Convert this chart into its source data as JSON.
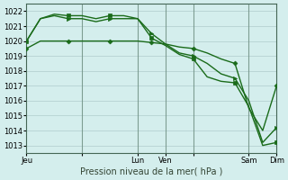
{
  "xlabel": "Pression niveau de la mer( hPa )",
  "bg_color": "#d4eeed",
  "grid_color": "#b0cccc",
  "line_color": "#1a6b1a",
  "marker_color": "#1a6b1a",
  "ylim": [
    1012.5,
    1022.5
  ],
  "yticks": [
    1013,
    1014,
    1015,
    1016,
    1017,
    1018,
    1019,
    1020,
    1021,
    1022
  ],
  "xlim": [
    0,
    108
  ],
  "day_tick_positions": [
    0,
    24,
    48,
    60,
    72,
    96,
    108
  ],
  "day_labels": [
    "Jeu",
    "",
    "Lun",
    "Ven",
    "",
    "Sam",
    "Dim"
  ],
  "series": [
    {
      "x": [
        0,
        6,
        12,
        18,
        24,
        30,
        36,
        42,
        48,
        54,
        60,
        66,
        72,
        78,
        84,
        90,
        96,
        102,
        108
      ],
      "y": [
        1019.5,
        1020.0,
        1020.0,
        1020.0,
        1020.0,
        1020.0,
        1020.0,
        1020.0,
        1020.0,
        1019.9,
        1019.8,
        1019.6,
        1019.5,
        1019.2,
        1018.8,
        1018.5,
        1015.5,
        1014.0,
        1017.0
      ],
      "marker": "D",
      "linewidth": 1.0,
      "markersize": 2.5,
      "markevery": 3
    },
    {
      "x": [
        0,
        6,
        12,
        18,
        24,
        30,
        36,
        42,
        48,
        54,
        60,
        66,
        72,
        78,
        84,
        90,
        96,
        102,
        108
      ],
      "y": [
        1020.0,
        1021.5,
        1021.7,
        1021.5,
        1021.5,
        1021.3,
        1021.5,
        1021.5,
        1021.5,
        1020.5,
        1019.8,
        1019.2,
        1019.0,
        1018.5,
        1017.8,
        1017.5,
        1016.0,
        1013.2,
        1014.2
      ],
      "marker": ">",
      "linewidth": 1.0,
      "markersize": 3.0,
      "markevery": 3
    },
    {
      "x": [
        0,
        6,
        12,
        18,
        24,
        30,
        36,
        42,
        48,
        54,
        60,
        66,
        72,
        78,
        84,
        90,
        96,
        102,
        108
      ],
      "y": [
        1020.0,
        1021.5,
        1021.8,
        1021.7,
        1021.7,
        1021.5,
        1021.7,
        1021.7,
        1021.5,
        1020.2,
        1019.7,
        1019.1,
        1018.8,
        1017.6,
        1017.3,
        1017.2,
        1015.6,
        1013.0,
        1013.2
      ],
      "marker": "s",
      "linewidth": 1.0,
      "markersize": 2.5,
      "markevery": 3
    }
  ],
  "vline_positions": [
    24,
    48,
    60,
    72,
    96
  ],
  "vline_color": "#557766",
  "xlabel_fontsize": 7,
  "tick_fontsize": 6
}
